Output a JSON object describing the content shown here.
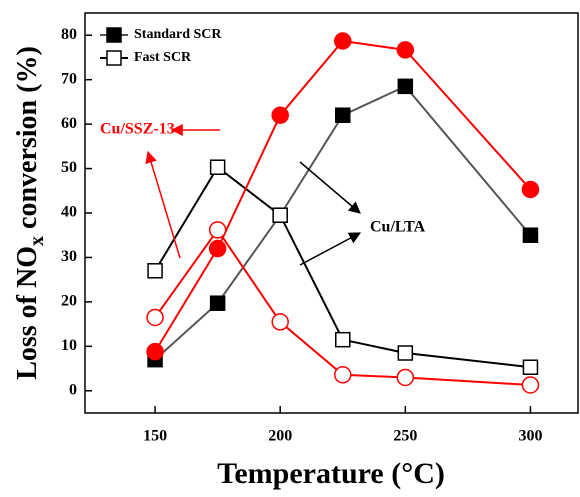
{
  "chart_data": {
    "type": "line",
    "x": [
      150,
      175,
      200,
      225,
      250,
      300
    ],
    "xlim": [
      122,
      319
    ],
    "xticks": [
      150,
      200,
      250,
      300
    ],
    "ylim": [
      -5,
      85
    ],
    "yticks": [
      0,
      10,
      20,
      30,
      40,
      50,
      60,
      70,
      80
    ],
    "x_label": "Temperature (°C)",
    "y_label": {
      "main": "Loss of NO",
      "sub": "x",
      "rest": " conversion (%)"
    },
    "annotations": [
      "Cu/SSZ-13",
      "Cu/LTA"
    ],
    "legend_position": "upper left",
    "series": [
      {
        "name": "Standard SCR",
        "color": "#555555",
        "marker_color": "#000000",
        "marker": "square",
        "filled": true,
        "values": [
          7,
          19.7,
          39.5,
          62,
          68.5,
          35
        ]
      },
      {
        "name": "Fast SCR",
        "color": "#000000",
        "marker_color": "#000000",
        "marker": "square",
        "filled": false,
        "values": [
          27,
          50.3,
          39.5,
          11.5,
          8.5,
          5.3
        ]
      },
      {
        "color": "#ff0000",
        "marker_color": "#ff0000",
        "marker": "circle",
        "filled": true,
        "values": [
          8.8,
          32,
          62,
          78.7,
          76.7,
          45.3
        ]
      },
      {
        "color": "#ff0000",
        "marker_color": "#ff0000",
        "marker": "circle",
        "filled": false,
        "values": [
          16.5,
          36.2,
          15.5,
          3.6,
          3,
          1.3
        ]
      }
    ]
  }
}
